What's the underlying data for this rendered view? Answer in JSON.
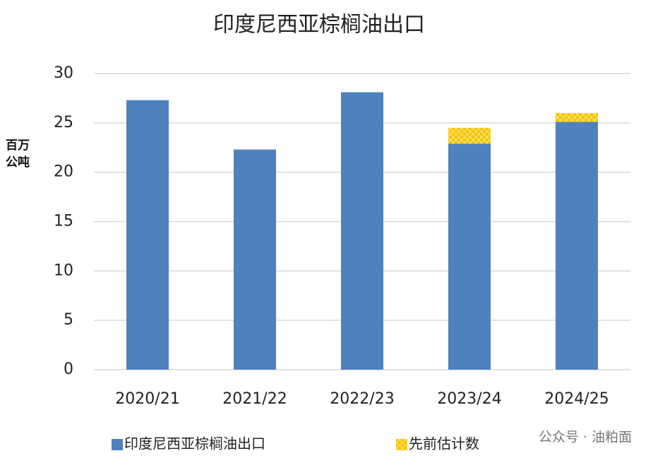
{
  "chart_data": {
    "type": "stacked_bar",
    "title": "印度尼西亚棕榈油出口",
    "y_label": "百万公吨",
    "categories": [
      "2020/21",
      "2021/22",
      "2022/23",
      "2023/24",
      "2024/25"
    ],
    "series": [
      {
        "name": "印度尼西亚棕榈油出口",
        "color": "#4f81bd",
        "values": [
          27.3,
          22.3,
          28.1,
          22.9,
          25.1
        ]
      },
      {
        "name": "先前估计数",
        "color": "#f5c400",
        "values": [
          null,
          null,
          null,
          1.6,
          0.9
        ]
      }
    ],
    "ylim": [
      0,
      30
    ],
    "yticks": [
      0,
      5,
      10,
      15,
      20,
      25,
      30
    ],
    "grid": true,
    "watermark": "公众号 · 油粕面"
  }
}
